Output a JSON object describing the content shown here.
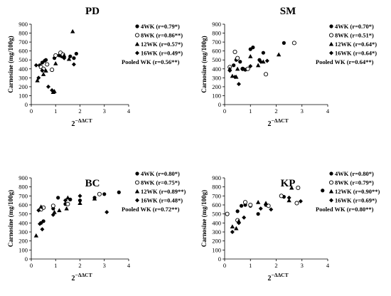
{
  "chart_data": [
    {
      "type": "scatter",
      "title": "PD",
      "xlabel": "2",
      "xlabel_sup": "−ΔΔCT",
      "ylabel": "Carnosine (mg/100g)",
      "xlim": [
        0,
        4
      ],
      "ylim": [
        0,
        900
      ],
      "xticks": [
        "0",
        "1",
        "2",
        "3",
        "4"
      ],
      "yticks": [
        "0",
        "100",
        "200",
        "300",
        "400",
        "500",
        "600",
        "700",
        "800",
        "900"
      ],
      "legend_position": "top-right",
      "series": [
        {
          "name": "4WK (r=0.79*)",
          "marker": "filled-circle",
          "points": [
            [
              0.35,
              440
            ],
            [
              0.45,
              470
            ],
            [
              0.55,
              490
            ],
            [
              0.6,
              500
            ],
            [
              0.95,
              520
            ],
            [
              1.15,
              550
            ],
            [
              1.25,
              540
            ],
            [
              1.6,
              540
            ],
            [
              1.75,
              520
            ],
            [
              1.85,
              570
            ]
          ]
        },
        {
          "name": "8WK (r=0.86**)",
          "marker": "open-circle",
          "points": [
            [
              0.4,
              420
            ],
            [
              0.5,
              400
            ],
            [
              0.65,
              450
            ],
            [
              0.85,
              390
            ],
            [
              1.0,
              550
            ],
            [
              1.2,
              580
            ],
            [
              1.3,
              560
            ]
          ]
        },
        {
          "name": "12WK (r=0.57*)",
          "marker": "filled-triangle",
          "points": [
            [
              0.25,
              270
            ],
            [
              0.5,
              340
            ],
            [
              0.6,
              380
            ],
            [
              0.9,
              140
            ],
            [
              0.95,
              150
            ],
            [
              1.0,
              460
            ],
            [
              1.35,
              550
            ],
            [
              1.55,
              510
            ],
            [
              1.7,
              820
            ]
          ]
        },
        {
          "name": "16WK (r=0.49*)",
          "marker": "filled-diamond",
          "points": [
            [
              0.2,
              440
            ],
            [
              0.3,
              300
            ],
            [
              0.45,
              380
            ],
            [
              0.7,
              200
            ],
            [
              0.85,
              160
            ],
            [
              1.35,
              520
            ],
            [
              1.75,
              450
            ]
          ]
        }
      ],
      "pooled": "Pooled WK (r=0.56**)"
    },
    {
      "type": "scatter",
      "title": "SM",
      "xlabel": "2",
      "xlabel_sup": "−ΔΔCT",
      "ylabel": "Carnosine (mg/100g)",
      "xlim": [
        0,
        4
      ],
      "ylim": [
        0,
        900
      ],
      "xticks": [
        "0",
        "1",
        "2",
        "3",
        "4"
      ],
      "yticks": [
        "0",
        "100",
        "200",
        "300",
        "400",
        "500",
        "600",
        "700",
        "800",
        "900"
      ],
      "legend_position": "top-right",
      "series": [
        {
          "name": "4WK (r=0.70*)",
          "marker": "filled-circle",
          "points": [
            [
              0.35,
              440
            ],
            [
              0.45,
              500
            ],
            [
              0.6,
              480
            ],
            [
              0.8,
              390
            ],
            [
              1.0,
              620
            ],
            [
              1.1,
              640
            ],
            [
              1.35,
              500
            ],
            [
              1.5,
              580
            ],
            [
              2.3,
              690
            ]
          ]
        },
        {
          "name": "8WK (r=0.51*)",
          "marker": "open-circle",
          "points": [
            [
              0.2,
              420
            ],
            [
              0.4,
              590
            ],
            [
              0.5,
              520
            ],
            [
              0.7,
              400
            ],
            [
              0.9,
              400
            ],
            [
              1.6,
              340
            ],
            [
              2.7,
              690
            ]
          ]
        },
        {
          "name": "12WK (r=0.64*)",
          "marker": "filled-triangle",
          "points": [
            [
              0.2,
              400
            ],
            [
              0.3,
              320
            ],
            [
              0.45,
              310
            ],
            [
              0.5,
              400
            ],
            [
              1.0,
              540
            ],
            [
              1.3,
              440
            ],
            [
              1.5,
              480
            ],
            [
              2.1,
              560
            ]
          ]
        },
        {
          "name": "16WK (r=0.64*)",
          "marker": "filled-diamond",
          "points": [
            [
              0.2,
              380
            ],
            [
              0.4,
              310
            ],
            [
              0.55,
              230
            ],
            [
              0.7,
              400
            ],
            [
              1.0,
              430
            ],
            [
              1.4,
              480
            ],
            [
              1.65,
              490
            ]
          ]
        }
      ],
      "pooled": "Pooled WK (r=0.64**)"
    },
    {
      "type": "scatter",
      "title": "BC",
      "xlabel": "2",
      "xlabel_sup": "−ΔΔCT",
      "ylabel": "Carnosine (mg/100g)",
      "xlim": [
        0,
        4
      ],
      "ylim": [
        0,
        900
      ],
      "xticks": [
        "0",
        "1",
        "2",
        "3",
        "4"
      ],
      "yticks": [
        "0",
        "100",
        "200",
        "300",
        "400",
        "500",
        "600",
        "700",
        "800",
        "900"
      ],
      "legend_position": "top-right",
      "series": [
        {
          "name": "4WK (r=0.80*)",
          "marker": "filled-circle",
          "points": [
            [
              0.4,
              400
            ],
            [
              0.5,
              420
            ],
            [
              0.9,
              560
            ],
            [
              1.1,
              680
            ],
            [
              1.4,
              610
            ],
            [
              1.6,
              660
            ],
            [
              2.0,
              650
            ],
            [
              2.6,
              680
            ],
            [
              3.0,
              720
            ],
            [
              3.6,
              740
            ]
          ]
        },
        {
          "name": "8WK (r=0.75*)",
          "marker": "open-circle",
          "points": [
            [
              0.4,
              550
            ],
            [
              0.5,
              570
            ],
            [
              0.9,
              590
            ],
            [
              1.5,
              610
            ],
            [
              2.8,
              720
            ]
          ]
        },
        {
          "name": "12WK (r=0.89**)",
          "marker": "filled-triangle",
          "points": [
            [
              0.2,
              260
            ],
            [
              0.4,
              580
            ],
            [
              0.95,
              520
            ],
            [
              1.15,
              540
            ],
            [
              1.45,
              560
            ],
            [
              1.5,
              680
            ],
            [
              2.0,
              620
            ],
            [
              2.6,
              670
            ]
          ]
        },
        {
          "name": "16WK (r=0.48*)",
          "marker": "filled-diamond",
          "points": [
            [
              0.3,
              540
            ],
            [
              0.35,
              390
            ],
            [
              0.45,
              330
            ],
            [
              0.9,
              490
            ],
            [
              1.4,
              650
            ],
            [
              2.0,
              700
            ],
            [
              3.1,
              520
            ]
          ]
        }
      ],
      "pooled": "Pooled WK (r=0.72**)"
    },
    {
      "type": "scatter",
      "title": "KP",
      "xlabel": "2",
      "xlabel_sup": "−ΔΔCT",
      "ylabel": "Carnosine (mg/100g)",
      "xlim": [
        0,
        4
      ],
      "ylim": [
        0,
        900
      ],
      "xticks": [
        "0",
        "1",
        "2",
        "3",
        "4"
      ],
      "yticks": [
        "0",
        "100",
        "200",
        "300",
        "400",
        "500",
        "600",
        "700",
        "800",
        "900"
      ],
      "legend_position": "top-right",
      "series": [
        {
          "name": "4WK (r=0.80*)",
          "marker": "filled-circle",
          "points": [
            [
              0.5,
              530
            ],
            [
              0.65,
              590
            ],
            [
              0.8,
              600
            ],
            [
              1.0,
              590
            ],
            [
              1.3,
              500
            ],
            [
              1.6,
              600
            ],
            [
              2.3,
              690
            ],
            [
              3.8,
              760
            ]
          ]
        },
        {
          "name": "8WK (r=0.79*)",
          "marker": "open-circle",
          "points": [
            [
              0.1,
              500
            ],
            [
              0.5,
              430
            ],
            [
              0.8,
              630
            ],
            [
              1.0,
              600
            ],
            [
              1.7,
              590
            ],
            [
              2.2,
              700
            ],
            [
              2.8,
              620
            ],
            [
              2.85,
              790
            ]
          ]
        },
        {
          "name": "12WK (r=0.90**)",
          "marker": "filled-triangle",
          "points": [
            [
              0.3,
              360
            ],
            [
              0.45,
              340
            ],
            [
              0.55,
              420
            ],
            [
              1.3,
              630
            ],
            [
              1.6,
              620
            ],
            [
              2.5,
              650
            ],
            [
              2.6,
              790
            ]
          ]
        },
        {
          "name": "16WK (r=0.69*)",
          "marker": "filled-diamond",
          "points": [
            [
              0.3,
              300
            ],
            [
              0.55,
              400
            ],
            [
              0.75,
              460
            ],
            [
              1.4,
              560
            ],
            [
              1.8,
              550
            ],
            [
              2.5,
              680
            ],
            [
              2.95,
              640
            ]
          ]
        }
      ],
      "pooled": "Pooled WK (r=0.80**)"
    }
  ]
}
